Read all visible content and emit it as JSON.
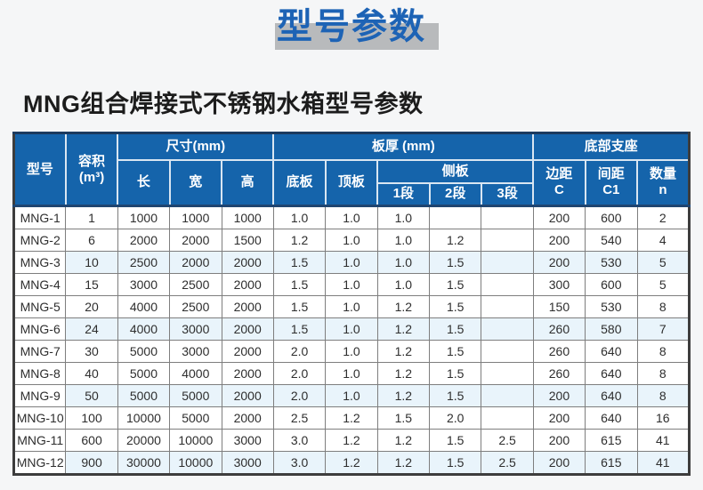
{
  "page": {
    "title": "型号参数",
    "subtitle": "MNG组合焊接式不锈钢水箱型号参数"
  },
  "colors": {
    "header_blue": "#1564ab",
    "title_blue": "#1d63b5",
    "title_shadow_gray": "#b8babc",
    "row_tint_blue": "#e9f4fb",
    "header_body_divider_navy": "#1f4571",
    "body_border_gray": "#7e7e7e",
    "page_background": "#f5f6f7"
  },
  "table": {
    "col_keys": [
      "model",
      "volume",
      "length",
      "width",
      "height",
      "bottom-plate",
      "top-plate",
      "side-seg1",
      "side-seg2",
      "side-seg3",
      "edge-c",
      "spacing-c1",
      "qty-n"
    ],
    "header": {
      "model": "型号",
      "volume_l1": "容积",
      "volume_l2": "(m³)",
      "size_group": "尺寸(mm)",
      "length": "长",
      "width": "宽",
      "height": "高",
      "thickness_group": "板厚 (mm)",
      "bottom_plate": "底板",
      "top_plate": "顶板",
      "side_plate": "侧板",
      "seg1": "1段",
      "seg2": "2段",
      "seg3": "3段",
      "support_group": "底部支座",
      "edge_l1": "边距",
      "edge_l2": "C",
      "spacing_l1": "间距",
      "spacing_l2": "C1",
      "qty_l1": "数量",
      "qty_l2": "n"
    },
    "rows": [
      [
        "MNG-1",
        "1",
        "1000",
        "1000",
        "1000",
        "1.0",
        "1.0",
        "1.0",
        "",
        "",
        "200",
        "600",
        "2"
      ],
      [
        "MNG-2",
        "6",
        "2000",
        "2000",
        "1500",
        "1.2",
        "1.0",
        "1.0",
        "1.2",
        "",
        "200",
        "540",
        "4"
      ],
      [
        "MNG-3",
        "10",
        "2500",
        "2000",
        "2000",
        "1.5",
        "1.0",
        "1.0",
        "1.5",
        "",
        "200",
        "530",
        "5"
      ],
      [
        "MNG-4",
        "15",
        "3000",
        "2500",
        "2000",
        "1.5",
        "1.0",
        "1.0",
        "1.5",
        "",
        "300",
        "600",
        "5"
      ],
      [
        "MNG-5",
        "20",
        "4000",
        "2500",
        "2000",
        "1.5",
        "1.0",
        "1.2",
        "1.5",
        "",
        "150",
        "530",
        "8"
      ],
      [
        "MNG-6",
        "24",
        "4000",
        "3000",
        "2000",
        "1.5",
        "1.0",
        "1.2",
        "1.5",
        "",
        "260",
        "580",
        "7"
      ],
      [
        "MNG-7",
        "30",
        "5000",
        "3000",
        "2000",
        "2.0",
        "1.0",
        "1.2",
        "1.5",
        "",
        "260",
        "640",
        "8"
      ],
      [
        "MNG-8",
        "40",
        "5000",
        "4000",
        "2000",
        "2.0",
        "1.0",
        "1.2",
        "1.5",
        "",
        "260",
        "640",
        "8"
      ],
      [
        "MNG-9",
        "50",
        "5000",
        "5000",
        "2000",
        "2.0",
        "1.0",
        "1.2",
        "1.5",
        "",
        "200",
        "640",
        "8"
      ],
      [
        "MNG-10",
        "100",
        "10000",
        "5000",
        "2000",
        "2.5",
        "1.2",
        "1.5",
        "2.0",
        "",
        "200",
        "640",
        "16"
      ],
      [
        "MNG-11",
        "600",
        "20000",
        "10000",
        "3000",
        "3.0",
        "1.2",
        "1.2",
        "1.5",
        "2.5",
        "200",
        "615",
        "41"
      ],
      [
        "MNG-12",
        "900",
        "30000",
        "10000",
        "3000",
        "3.0",
        "1.2",
        "1.2",
        "1.5",
        "2.5",
        "200",
        "615",
        "41"
      ]
    ]
  }
}
